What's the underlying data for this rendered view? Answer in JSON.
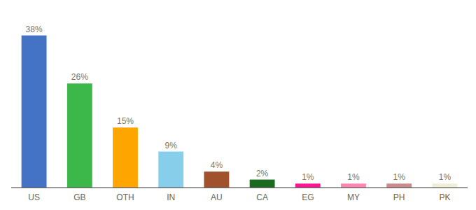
{
  "chart_data": {
    "type": "bar",
    "categories": [
      "US",
      "GB",
      "OTH",
      "IN",
      "AU",
      "CA",
      "EG",
      "MY",
      "PH",
      "PK"
    ],
    "values": [
      38,
      26,
      15,
      9,
      4,
      2,
      1,
      1,
      1,
      1
    ],
    "value_labels": [
      "38%",
      "26%",
      "15%",
      "9%",
      "4%",
      "2%",
      "1%",
      "1%",
      "1%",
      "1%"
    ],
    "colors": [
      "#4472C4",
      "#3CB84A",
      "#FFA500",
      "#87CEEB",
      "#A0522D",
      "#1A6B20",
      "#FF1493",
      "#FF85B0",
      "#CD8A8A",
      "#F0EDD8"
    ],
    "ylim": [
      0,
      43
    ],
    "data_labels": true,
    "grid": false,
    "tick_labels": "x"
  }
}
